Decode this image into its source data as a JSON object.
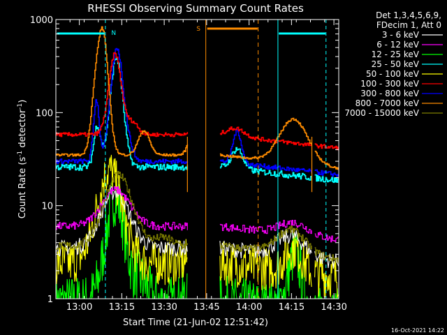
{
  "chart_data": {
    "type": "line",
    "title": "RHESSI Observing Summary Count Rates",
    "xlabel": "Start Time (21-Jun-02 12:51:42)",
    "ylabel_main": "Count Rate (s",
    "ylabel_sup1": "-1",
    "ylabel_mid": " detector",
    "ylabel_sup2": "-1",
    "ylabel_end": ")",
    "yscale": "log",
    "ylim": [
      1,
      1000
    ],
    "xlim_minutes": [
      0,
      100
    ],
    "x_ticks": [
      {
        "m": 8.3,
        "label": "13:00"
      },
      {
        "m": 23.3,
        "label": "13:15"
      },
      {
        "m": 38.3,
        "label": "13:30"
      },
      {
        "m": 53.3,
        "label": "13:45"
      },
      {
        "m": 68.3,
        "label": "14:00"
      },
      {
        "m": 83.3,
        "label": "14:15"
      },
      {
        "m": 98.3,
        "label": "14:30"
      }
    ],
    "y_ticks": [
      {
        "v": 1000,
        "label": "1000"
      },
      {
        "v": 100,
        "label": "100"
      },
      {
        "v": 10,
        "label": "10"
      },
      {
        "v": 1,
        "label": "1"
      }
    ],
    "legend_header": [
      "Det 1,3,4,5,6,9,",
      "FDecim 1, Att 0"
    ],
    "series": [
      {
        "name": "3 - 6 keV",
        "color": "#ffffff"
      },
      {
        "name": "6 - 12 keV",
        "color": "#ff00ff"
      },
      {
        "name": "12 - 25 keV",
        "color": "#00ff00"
      },
      {
        "name": "25 - 50 keV",
        "color": "#00ffff"
      },
      {
        "name": "50 - 100 keV",
        "color": "#ffff00"
      },
      {
        "name": "100 - 300 keV",
        "color": "#ff0000"
      },
      {
        "name": "300 - 800 keV",
        "color": "#0000ff"
      },
      {
        "name": "800 - 7000 keV",
        "color": "#ff8c00"
      },
      {
        "name": "7000 - 15000 keV",
        "color": "#808000"
      }
    ],
    "annotations": [
      {
        "label": "N",
        "color": "#00ffff"
      },
      {
        "label": "S",
        "color": "#ff8c00"
      }
    ],
    "timestamp": "16-Oct-2021 14:22"
  }
}
